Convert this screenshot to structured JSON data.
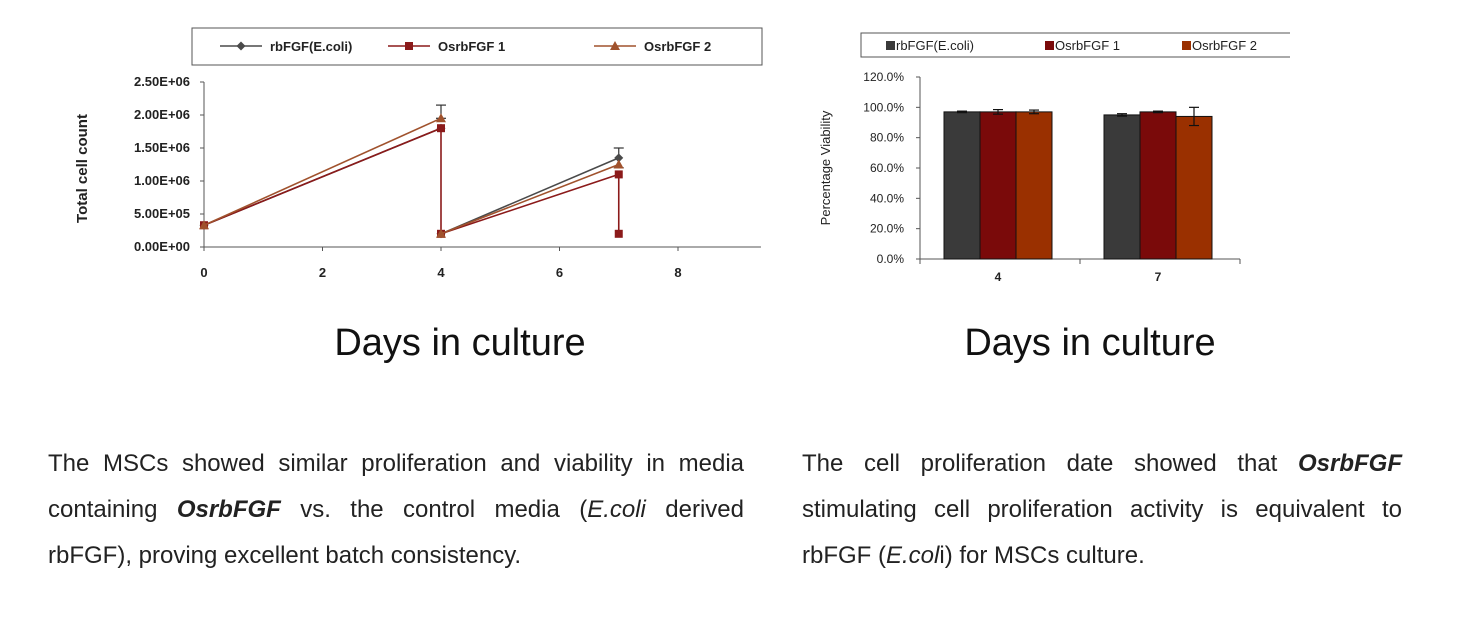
{
  "chart_data": [
    {
      "type": "line",
      "title": "",
      "xlabel": "Days in culture",
      "ylabel": "Total cell count",
      "x_ticks": [
        "0",
        "2",
        "4",
        "6",
        "8"
      ],
      "y_ticks": [
        "0.00E+00",
        "5.00E+05",
        "1.00E+06",
        "1.50E+06",
        "2.00E+06",
        "2.50E+06"
      ],
      "xlim": [
        0,
        9.4
      ],
      "ylim": [
        0,
        2500000
      ],
      "legend_position": "top",
      "series": [
        {
          "name": "rbFGF(E.coli)",
          "color": "#4a4a4a",
          "marker": "diamond",
          "segments": [
            [
              [
                0,
                330000
              ],
              [
                4,
                1800000
              ]
            ],
            [
              [
                4,
                200000
              ],
              [
                7,
                1350000
              ]
            ]
          ],
          "errors": [
            [
              7,
              150000
            ]
          ]
        },
        {
          "name": "OsrbFGF 1",
          "color": "#8b1a1a",
          "marker": "square",
          "segments": [
            [
              [
                0,
                330000
              ],
              [
                4,
                1800000
              ],
              [
                4,
                200000
              ],
              [
                7,
                1100000
              ],
              [
                7,
                200000
              ]
            ]
          ],
          "errors": []
        },
        {
          "name": "OsrbFGF 2",
          "color": "#a0522d",
          "marker": "triangle",
          "segments": [
            [
              [
                0,
                330000
              ],
              [
                4,
                1950000
              ]
            ],
            [
              [
                4,
                200000
              ],
              [
                7,
                1250000
              ]
            ]
          ],
          "errors": [
            [
              4,
              200000
            ]
          ]
        }
      ]
    },
    {
      "type": "bar",
      "title": "",
      "xlabel": "Days in culture",
      "ylabel": "Percentage Viability",
      "categories": [
        "4",
        "7"
      ],
      "y_ticks": [
        "0.0%",
        "20.0%",
        "40.0%",
        "60.0%",
        "80.0%",
        "100.0%",
        "120.0%"
      ],
      "ylim": [
        0,
        120
      ],
      "legend_position": "top",
      "series": [
        {
          "name": "rbFGF(E.coli)",
          "color": "#3a3a3a",
          "values": [
            97,
            95
          ],
          "errors": [
            0.5,
            0.8
          ]
        },
        {
          "name": "OsrbFGF 1",
          "color": "#7a0a0a",
          "values": [
            97,
            97
          ],
          "errors": [
            1.5,
            0.5
          ]
        },
        {
          "name": "OsrbFGF 2",
          "color": "#9a3000",
          "values": [
            97,
            94
          ],
          "errors": [
            1.2,
            6
          ]
        }
      ]
    }
  ],
  "text": {
    "left_para": {
      "t1": "The MSCs showed similar proliferation and viability in media containing ",
      "b1": "OsrbFGF",
      "t2": " vs. the control media (",
      "i1": "E.coli",
      "t3": " derived rbFGF), proving excellent batch consistency."
    },
    "right_para": {
      "t1": "The cell proliferation date showed that ",
      "b1": "OsrbFGF",
      "t2": " stimulating cell proliferation activity is equivalent to rbFGF (",
      "i1": "E.col",
      "t3": "i) for MSCs culture."
    }
  }
}
